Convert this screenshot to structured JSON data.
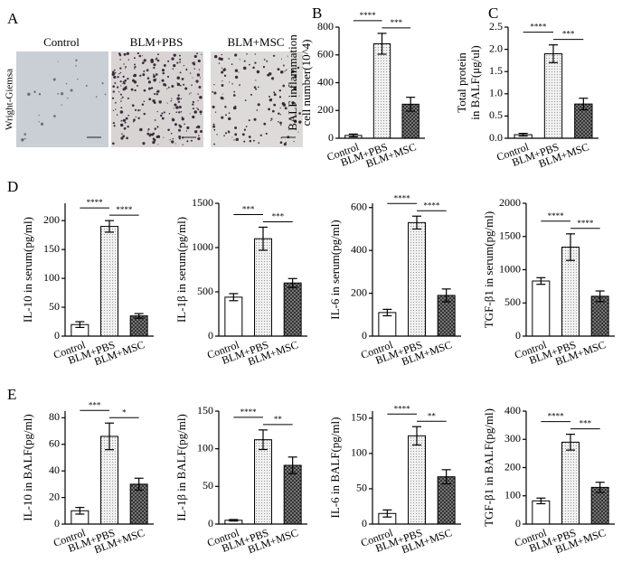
{
  "panel_labels": [
    "A",
    "B",
    "C",
    "D",
    "E"
  ],
  "panel_a": {
    "stain": "Wright-Giemsa",
    "images": [
      "Control",
      "BLM+PBS",
      "BLM+MSC"
    ]
  },
  "chart_data": [
    {
      "type": "bar",
      "y_label": [
        "BALF inflammation",
        "cell number(10^4)"
      ],
      "categories": [
        "Control",
        "BLM+PBS",
        "BLM+MSC"
      ],
      "values": [
        20,
        680,
        245
      ],
      "errors": [
        10,
        75,
        50
      ],
      "ylim": [
        0,
        800
      ],
      "yticks": [
        0,
        200,
        400,
        600,
        800
      ],
      "significance": [
        "****",
        "***"
      ]
    },
    {
      "type": "bar",
      "y_label": [
        "Total protein",
        "in BALF(μg/ul)"
      ],
      "categories": [
        "Control",
        "BLM+PBS",
        "BLM+MSC"
      ],
      "values": [
        0.08,
        1.9,
        0.77
      ],
      "errors": [
        0.03,
        0.2,
        0.13
      ],
      "ylim": [
        0,
        2.5
      ],
      "yticks": [
        {
          "value": 0,
          "label": "0.0"
        },
        0.5,
        {
          "value": 1,
          "label": "1.0"
        },
        1.5,
        {
          "value": 2,
          "label": "2.0"
        },
        2.5
      ],
      "significance": [
        "****",
        "***"
      ]
    },
    {
      "type": "bar",
      "y_label": [
        "IL-10 in serum(pg/ml)"
      ],
      "categories": [
        "Control",
        "BLM+PBS",
        "BLM+MSC"
      ],
      "values": [
        20,
        190,
        35
      ],
      "errors": [
        5,
        10,
        4
      ],
      "ylim": [
        0,
        230
      ],
      "yticks": [
        0,
        50,
        100,
        150,
        200
      ],
      "significance": [
        "****",
        "****"
      ]
    },
    {
      "type": "bar",
      "y_label": [
        "IL-1β in serum(pg/ml)"
      ],
      "categories": [
        "Control",
        "BLM+PBS",
        "BLM+MSC"
      ],
      "values": [
        440,
        1100,
        600
      ],
      "errors": [
        40,
        130,
        50
      ],
      "ylim": [
        0,
        1500
      ],
      "yticks": [
        0,
        500,
        1000,
        1500
      ],
      "significance": [
        "***",
        "***"
      ]
    },
    {
      "type": "bar",
      "y_label": [
        "IL-6 in serum(pg/ml)"
      ],
      "categories": [
        "Control",
        "BLM+PBS",
        "BLM+MSC"
      ],
      "values": [
        110,
        530,
        190
      ],
      "errors": [
        15,
        30,
        30
      ],
      "ylim": [
        0,
        620
      ],
      "yticks": [
        0,
        200,
        400,
        600
      ],
      "significance": [
        "****",
        "****"
      ]
    },
    {
      "type": "bar",
      "y_label": [
        "TGF-β1 in serum(pg/ml)"
      ],
      "categories": [
        "Control",
        "BLM+PBS",
        "BLM+MSC"
      ],
      "values": [
        830,
        1340,
        600
      ],
      "errors": [
        50,
        200,
        80
      ],
      "ylim": [
        0,
        2000
      ],
      "yticks": [
        0,
        500,
        1000,
        1500,
        2000
      ],
      "significance": [
        "****",
        "****"
      ]
    },
    {
      "type": "bar",
      "y_label": [
        "IL-10 in BALF(pg/ml)"
      ],
      "categories": [
        "Control",
        "BLM+PBS",
        "BLM+MSC"
      ],
      "values": [
        10,
        66,
        30
      ],
      "errors": [
        2.5,
        10,
        4.5
      ],
      "ylim": [
        0,
        85
      ],
      "yticks": [
        0,
        20,
        40,
        60,
        80
      ],
      "significance": [
        "***",
        "*"
      ]
    },
    {
      "type": "bar",
      "y_label": [
        "IL-1β in BALF(pg/ml)"
      ],
      "categories": [
        "Control",
        "BLM+PBS",
        "BLM+MSC"
      ],
      "values": [
        5,
        112,
        78
      ],
      "errors": [
        1,
        13,
        11
      ],
      "ylim": [
        0,
        150
      ],
      "yticks": [
        0,
        50,
        100,
        150
      ],
      "significance": [
        "****",
        "**"
      ]
    },
    {
      "type": "bar",
      "y_label": [
        "IL-6 in BALF(pg/ml)"
      ],
      "categories": [
        "Control",
        "BLM+PBS",
        "BLM+MSC"
      ],
      "values": [
        15,
        125,
        67
      ],
      "errors": [
        5,
        13,
        10
      ],
      "ylim": [
        0,
        160
      ],
      "yticks": [
        0,
        50,
        100,
        150
      ],
      "significance": [
        "****",
        "**"
      ]
    },
    {
      "type": "bar",
      "y_label": [
        "TGF-β1 in BALF(pg/ml)"
      ],
      "categories": [
        "Control",
        "BLM+PBS",
        "BLM+MSC"
      ],
      "values": [
        82,
        290,
        130
      ],
      "errors": [
        10,
        28,
        18
      ],
      "ylim": [
        0,
        400
      ],
      "yticks": [
        0,
        100,
        200,
        300,
        400
      ],
      "significance": [
        "****",
        "***"
      ]
    }
  ]
}
